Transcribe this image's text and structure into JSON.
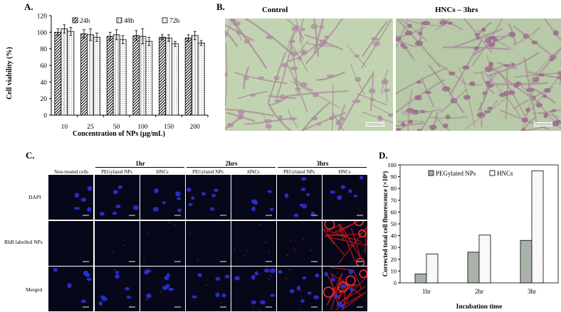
{
  "panels": {
    "a": "A.",
    "b": "B.",
    "c": "C.",
    "d": "D."
  },
  "panel_b": {
    "control_label": "Control",
    "hncs_label": "HNCs – 3hrs"
  },
  "panel_c": {
    "time_headers": [
      "1hr",
      "2hrs",
      "3hrs"
    ],
    "col_headers": [
      "Non-treated cells",
      "PEGylated NPs",
      "HNCs",
      "PEGylated NPs",
      "HNCs",
      "PEGylated NPs",
      "HNCs"
    ],
    "row_labels": [
      "DAPI",
      "RhB labelled NPs",
      "Merged"
    ]
  },
  "chart_data": [
    {
      "type": "bar",
      "ylabel": "Cell viability (%)",
      "xlabel": "Concentration of NPs (µg/mL)",
      "categories": [
        "10",
        "25",
        "50",
        "100",
        "150",
        "200"
      ],
      "ylim": [
        0,
        120
      ],
      "yticks": [
        "0",
        "20",
        "40",
        "60",
        "80",
        "100",
        "120"
      ],
      "legend_placement": "top",
      "series": [
        {
          "name": "24h",
          "values": [
            100,
            98,
            95,
            96,
            94,
            93
          ],
          "errors": [
            4,
            5,
            5,
            6,
            3,
            4
          ]
        },
        {
          "name": "48h",
          "values": [
            104,
            97,
            97,
            95,
            93,
            96
          ],
          "errors": [
            5,
            7,
            6,
            9,
            4,
            5
          ]
        },
        {
          "name": "72h",
          "values": [
            101,
            94,
            91,
            89,
            86,
            87
          ],
          "errors": [
            5,
            5,
            5,
            5,
            3,
            3
          ]
        }
      ]
    },
    {
      "type": "bar",
      "ylabel": "Corrected total cell fluorescence (×10⁶)",
      "xlabel": "Incubation time",
      "categories": [
        "1hr",
        "2hr",
        "3hr"
      ],
      "ylim": [
        0,
        100
      ],
      "yticks": [
        "0",
        "10",
        "20",
        "30",
        "40",
        "50",
        "60",
        "70",
        "80",
        "90",
        "100"
      ],
      "legend_placement": "top-left",
      "series": [
        {
          "name": "PEGylated NPs",
          "values": [
            7.5,
            26,
            36
          ],
          "color": "#a9b2a9"
        },
        {
          "name": "HNCs",
          "values": [
            24.5,
            40.5,
            95
          ],
          "color": "#ffffff"
        }
      ]
    }
  ]
}
